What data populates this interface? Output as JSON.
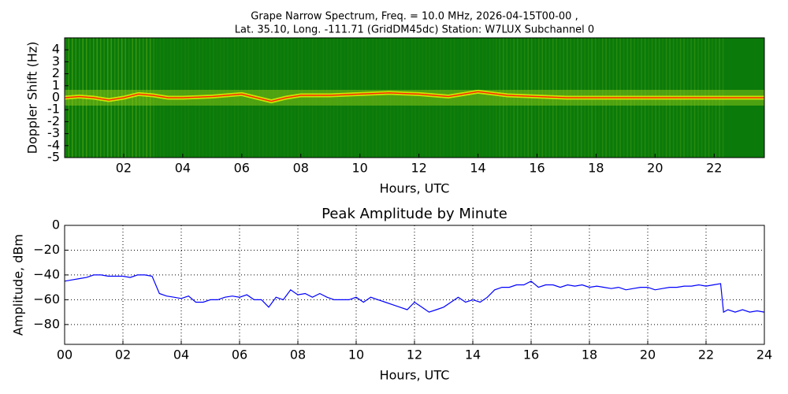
{
  "chart_data": [
    {
      "type": "spectrogram",
      "title": [
        "Grape Narrow Spectrum, Freq. = 10.0 MHz, 2026-04-15T00-00 ,",
        "Lat.  35.10, Long. -111.71 (GridDM45dc) Station: W7LUX Subchannel 0"
      ],
      "x_label": "Hours, UTC",
      "y_label": "Doppler Shift (Hz)",
      "background": "#0a7a0a",
      "color": "#ff2a00",
      "x": [
        0,
        0.5,
        1,
        1.5,
        2,
        2.5,
        3,
        3.5,
        4,
        5,
        6,
        7,
        7.5,
        8,
        9,
        10,
        11,
        12,
        13,
        14,
        15,
        16,
        17,
        18,
        19,
        20,
        21,
        22,
        23,
        23.7
      ],
      "values": [
        0,
        0.1,
        0,
        -0.2,
        0,
        0.3,
        0.2,
        0,
        0,
        0.1,
        0.3,
        -0.3,
        0,
        0.2,
        0.2,
        0.3,
        0.4,
        0.3,
        0.1,
        0.5,
        0.2,
        0.1,
        0,
        0,
        0,
        0,
        0,
        0,
        0,
        0
      ],
      "xlim": [
        0,
        23.7
      ],
      "xticks": [
        {
          "value": 2,
          "label": "02"
        },
        {
          "value": 4,
          "label": "04"
        },
        {
          "value": 6,
          "label": "06"
        },
        {
          "value": 8,
          "label": "08"
        },
        10,
        12,
        14,
        16,
        18,
        20,
        22
      ],
      "ylim": [
        -5,
        5
      ],
      "yticks": [
        -5,
        -4,
        -3,
        -2,
        -1,
        0,
        1,
        2,
        3,
        4
      ],
      "grid": false
    },
    {
      "type": "line",
      "title": [
        "Peak Amplitude by Minute"
      ],
      "x_label": "Hours, UTC",
      "y_label": "Amplitude, dBm",
      "color": "#0000ff",
      "x": [
        0,
        0.25,
        0.5,
        0.75,
        1,
        1.25,
        1.5,
        1.75,
        2,
        2.25,
        2.5,
        2.75,
        3,
        3.25,
        3.5,
        3.75,
        4,
        4.25,
        4.5,
        4.75,
        5,
        5.25,
        5.5,
        5.75,
        6,
        6.25,
        6.5,
        6.75,
        7,
        7.25,
        7.5,
        7.75,
        8,
        8.25,
        8.5,
        8.75,
        9,
        9.25,
        9.5,
        9.75,
        10,
        10.25,
        10.5,
        10.75,
        11,
        11.25,
        11.5,
        11.75,
        12,
        12.25,
        12.5,
        12.75,
        13,
        13.25,
        13.5,
        13.75,
        14,
        14.25,
        14.5,
        14.75,
        15,
        15.25,
        15.5,
        15.75,
        16,
        16.25,
        16.5,
        16.75,
        17,
        17.25,
        17.5,
        17.75,
        18,
        18.25,
        18.5,
        18.75,
        19,
        19.25,
        19.5,
        19.75,
        20,
        20.25,
        20.5,
        20.75,
        21,
        21.25,
        21.5,
        21.75,
        22,
        22.25,
        22.5,
        22.6,
        22.75,
        23,
        23.25,
        23.5,
        23.75,
        24
      ],
      "values": [
        -45,
        -44,
        -43,
        -42,
        -40,
        -40,
        -41,
        -41,
        -41,
        -42,
        -40,
        -40,
        -41,
        -55,
        -57,
        -58,
        -59,
        -57,
        -62,
        -62,
        -60,
        -60,
        -58,
        -57,
        -58,
        -56,
        -60,
        -60,
        -66,
        -58,
        -60,
        -52,
        -56,
        -55,
        -58,
        -55,
        -58,
        -60,
        -60,
        -60,
        -58,
        -62,
        -58,
        -60,
        -62,
        -64,
        -66,
        -68,
        -62,
        -66,
        -70,
        -68,
        -66,
        -62,
        -58,
        -62,
        -60,
        -62,
        -58,
        -52,
        -50,
        -50,
        -48,
        -48,
        -45,
        -50,
        -48,
        -48,
        -50,
        -48,
        -49,
        -48,
        -50,
        -49,
        -50,
        -51,
        -50,
        -52,
        -51,
        -50,
        -50,
        -52,
        -51,
        -50,
        -50,
        -49,
        -49,
        -48,
        -49,
        -48,
        -47,
        -70,
        -68,
        -70,
        -68,
        -70,
        -69,
        -70
      ],
      "xlim": [
        0,
        24
      ],
      "xticks": [
        {
          "value": 0,
          "label": "00"
        },
        {
          "value": 2,
          "label": "02"
        },
        {
          "value": 4,
          "label": "04"
        },
        {
          "value": 6,
          "label": "06"
        },
        {
          "value": 8,
          "label": "08"
        },
        10,
        12,
        14,
        16,
        18,
        20,
        22,
        24
      ],
      "ylim": [
        -96,
        0
      ],
      "yticks": [
        0,
        {
          "value": -20,
          "label": "−20"
        },
        {
          "value": -40,
          "label": "−40"
        },
        {
          "value": -60,
          "label": "−60"
        },
        {
          "value": -80,
          "label": "−80"
        }
      ],
      "grid": true
    }
  ]
}
